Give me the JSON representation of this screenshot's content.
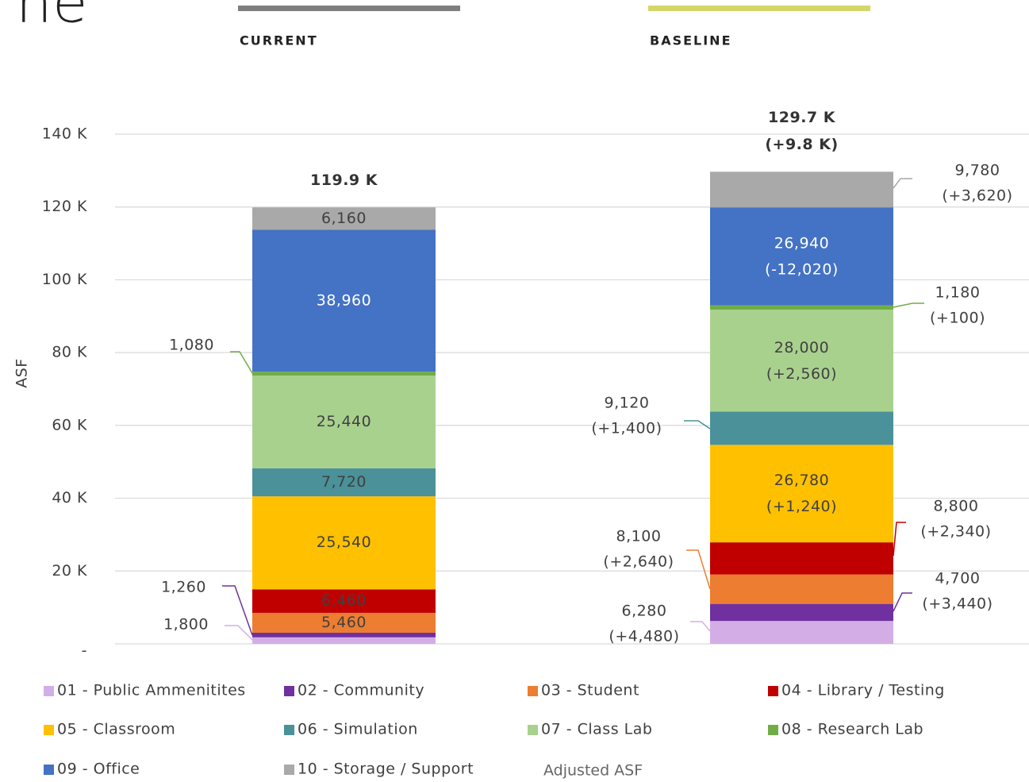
{
  "chart_data": {
    "type": "stacked_bar",
    "title": "ne",
    "y_label": "ASF",
    "categories": [
      "CURRENT",
      "BASELINE"
    ],
    "category_colors": [
      "#7f7f7f",
      "#d4d66a"
    ],
    "ylim": [
      0,
      140000
    ],
    "yticks": [
      {
        "value": 0,
        "label": "-"
      },
      {
        "value": 20000,
        "label": "20 K"
      },
      {
        "value": 40000,
        "label": "40 K"
      },
      {
        "value": 60000,
        "label": "60 K"
      },
      {
        "value": 80000,
        "label": "80 K"
      },
      {
        "value": 100000,
        "label": "100 K"
      },
      {
        "value": 120000,
        "label": "120 K"
      },
      {
        "value": 140000,
        "label": "140 K"
      }
    ],
    "grid": true,
    "total_labels": [
      "119.9 K",
      "129.7 K"
    ],
    "total_change": "(+9.8 K)",
    "legend_note": "Adjusted ASF",
    "series": [
      {
        "name": "01 - Public Ammenitites",
        "color": "#d3aee6",
        "values": [
          1800,
          6280
        ],
        "value_labels": [
          "1,800",
          "6,280"
        ],
        "changes": [
          null,
          "(+4,480)"
        ]
      },
      {
        "name": "02 - Community",
        "color": "#7030a0",
        "values": [
          1260,
          4700
        ],
        "value_labels": [
          "1,260",
          "4,700"
        ],
        "changes": [
          null,
          "(+3,440)"
        ]
      },
      {
        "name": "03 - Student",
        "color": "#ed7d31",
        "values": [
          5460,
          8100
        ],
        "value_labels": [
          "5,460",
          "8,100"
        ],
        "changes": [
          null,
          "(+2,640)"
        ]
      },
      {
        "name": "04 - Library / Testing",
        "color": "#c00000",
        "values": [
          6460,
          8800
        ],
        "value_labels": [
          "6,460",
          "8,800"
        ],
        "changes": [
          null,
          "(+2,340)"
        ]
      },
      {
        "name": "05 - Classroom",
        "color": "#ffc000",
        "values": [
          25540,
          26780
        ],
        "value_labels": [
          "25,540",
          "26,780"
        ],
        "changes": [
          null,
          "(+1,240)"
        ]
      },
      {
        "name": "06 - Simulation",
        "color": "#4a9199",
        "values": [
          7720,
          9120
        ],
        "value_labels": [
          "7,720",
          "9,120"
        ],
        "changes": [
          null,
          "(+1,400)"
        ]
      },
      {
        "name": "07 - Class Lab",
        "color": "#a9d18e",
        "values": [
          25440,
          28000
        ],
        "value_labels": [
          "25,440",
          "28,000"
        ],
        "changes": [
          null,
          "(+2,560)"
        ]
      },
      {
        "name": "08 - Research Lab",
        "color": "#70ad47",
        "values": [
          1080,
          1180
        ],
        "value_labels": [
          "1,080",
          "1,180"
        ],
        "changes": [
          null,
          "(+100)"
        ]
      },
      {
        "name": "09 - Office",
        "color": "#4472c4",
        "values": [
          38960,
          26940
        ],
        "value_labels": [
          "38,960",
          "26,940"
        ],
        "changes": [
          null,
          "(-12,020)"
        ]
      },
      {
        "name": "10 - Storage / Support",
        "color": "#a9a9a9",
        "values": [
          6160,
          9780
        ],
        "value_labels": [
          "6,160",
          "9,780"
        ],
        "changes": [
          null,
          "(+3,620)"
        ]
      }
    ]
  }
}
